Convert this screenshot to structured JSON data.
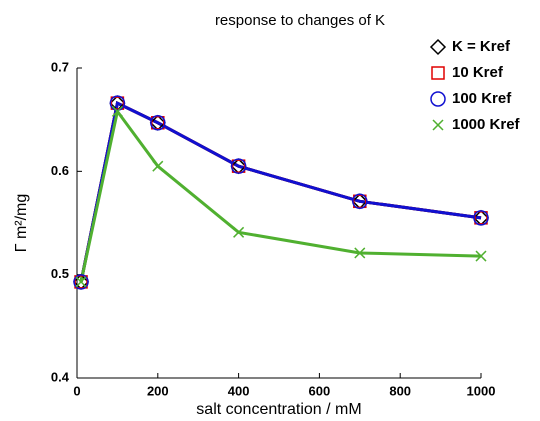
{
  "chart_data": {
    "type": "line",
    "title": "response to changes of K",
    "x_label": "salt concentration / mM",
    "y_label": "Γ m²/mg",
    "x": [
      10,
      100,
      200,
      400,
      700,
      1000
    ],
    "series": [
      {
        "name": "K = Kref",
        "color": "#000000",
        "marker": "diamond",
        "values": [
          0.493,
          0.666,
          0.647,
          0.605,
          0.571,
          0.555
        ]
      },
      {
        "name": "10 Kref",
        "color": "#e00000",
        "marker": "square",
        "values": [
          0.493,
          0.666,
          0.647,
          0.605,
          0.571,
          0.555
        ]
      },
      {
        "name": "100 Kref",
        "color": "#1010d0",
        "marker": "circle",
        "values": [
          0.493,
          0.666,
          0.647,
          0.605,
          0.571,
          0.555
        ]
      },
      {
        "name": "1000 Kref",
        "color": "#50b030",
        "marker": "cross",
        "values": [
          0.493,
          0.658,
          0.605,
          0.541,
          0.521,
          0.518
        ]
      }
    ],
    "xlim": [
      0,
      1000
    ],
    "xticks": [
      0,
      200,
      400,
      600,
      800,
      1000
    ],
    "ylim": [
      0.4,
      0.7
    ],
    "yticks": [
      0.4,
      0.5,
      0.6,
      0.7
    ],
    "legend": "top-right"
  }
}
